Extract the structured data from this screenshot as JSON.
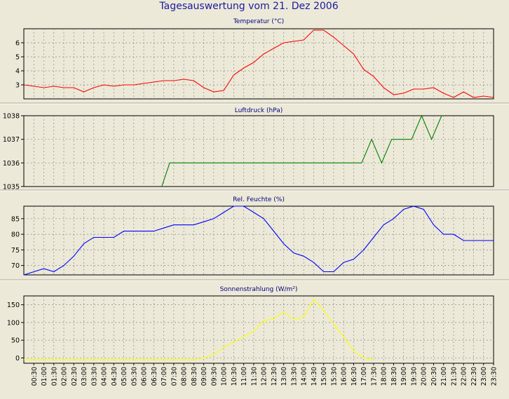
{
  "page_title": "Tagesauswertung vom 21. Dez 2006",
  "colors": {
    "background": "#ece9d8",
    "plot_background": "#ece9d8",
    "title_text": "#1a1aa0",
    "temperature": "#ff0000",
    "pressure": "#008000",
    "humidity": "#0000ff",
    "radiation": "#ffff00"
  },
  "chart_data": [
    {
      "type": "line",
      "title": "Temperatur (°C)",
      "x": [
        0,
        0.5,
        1,
        1.5,
        2,
        2.5,
        3,
        3.5,
        4,
        4.5,
        5,
        5.5,
        6,
        6.5,
        7,
        7.5,
        8,
        8.5,
        9,
        9.5,
        10,
        10.5,
        11,
        11.5,
        12,
        12.5,
        13,
        13.5,
        14,
        14.5,
        15,
        15.5,
        16,
        16.5,
        17,
        17.5,
        18,
        18.5,
        19,
        19.5,
        20,
        20.5,
        21,
        21.5,
        22,
        22.5,
        23,
        23.5
      ],
      "values": [
        3.0,
        2.9,
        2.8,
        2.9,
        2.8,
        2.8,
        2.5,
        2.8,
        3.0,
        2.9,
        3.0,
        3.0,
        3.1,
        3.2,
        3.3,
        3.3,
        3.4,
        3.3,
        2.8,
        2.5,
        2.6,
        3.7,
        4.2,
        4.6,
        5.2,
        5.6,
        6.0,
        6.1,
        6.2,
        6.9,
        6.9,
        6.4,
        5.8,
        5.2,
        4.1,
        3.6,
        2.8,
        2.3,
        2.4,
        2.7,
        2.7,
        2.8,
        2.4,
        2.1,
        2.5,
        2.1,
        2.2,
        2.1
      ],
      "ylim": [
        2,
        7
      ],
      "yticks": [
        3,
        4,
        5,
        6
      ],
      "grid": true
    },
    {
      "type": "line",
      "title": "Luftdruck (hPa)",
      "x": [
        6.9,
        7.3,
        16.9,
        17.4,
        17.9,
        18.4,
        19.4,
        19.9,
        20.4,
        20.9
      ],
      "values": [
        1035,
        1036,
        1036,
        1037,
        1036,
        1037,
        1037,
        1038,
        1037,
        1038
      ],
      "ylim": [
        1035,
        1038
      ],
      "yticks": [
        1035,
        1036,
        1037,
        1038
      ],
      "grid": true
    },
    {
      "type": "line",
      "title": "Rel. Feuchte (%)",
      "x": [
        0,
        1,
        1.5,
        2,
        2.5,
        3,
        3.5,
        4,
        4.5,
        5,
        5.5,
        6,
        6.5,
        7,
        7.5,
        8,
        8.5,
        9,
        9.5,
        10,
        10.5,
        11,
        11.5,
        12,
        12.5,
        13,
        13.5,
        14,
        14.5,
        15,
        15.5,
        16,
        16.5,
        17,
        17.5,
        18,
        18.5,
        19,
        19.5,
        20,
        20.5,
        21,
        21.5,
        22,
        22.5,
        23,
        23.5
      ],
      "values": [
        67,
        69,
        68,
        70,
        73,
        77,
        79,
        79,
        79,
        81,
        81,
        81,
        81,
        82,
        83,
        83,
        83,
        84,
        85,
        87,
        89,
        89,
        87,
        85,
        81,
        77,
        74,
        73,
        71,
        68,
        68,
        71,
        72,
        75,
        79,
        83,
        85,
        88,
        89,
        88,
        83,
        80,
        80,
        78,
        78,
        78,
        78
      ],
      "ylim": [
        67,
        89
      ],
      "yticks": [
        70,
        75,
        80,
        85
      ],
      "grid": true
    },
    {
      "type": "line",
      "title": "Sonnenstrahlung (W/m²)",
      "x": [
        0,
        8.5,
        9,
        9.5,
        10,
        10.5,
        11,
        11.5,
        12,
        12.5,
        13,
        13.5,
        14,
        14.5,
        15,
        15.5,
        16,
        16.5,
        17,
        17.5
      ],
      "values": [
        -5,
        -5,
        0,
        10,
        30,
        45,
        60,
        75,
        105,
        110,
        130,
        110,
        115,
        165,
        135,
        95,
        60,
        20,
        0,
        -5
      ],
      "ylim": [
        -15,
        175
      ],
      "yticks": [
        0,
        50,
        100,
        150
      ],
      "grid": true,
      "xticks": [
        "00:30",
        "01:00",
        "01:30",
        "02:00",
        "02:30",
        "03:00",
        "03:30",
        "04:00",
        "04:30",
        "05:00",
        "05:30",
        "06:00",
        "06:30",
        "07:00",
        "07:30",
        "08:00",
        "08:30",
        "09:00",
        "09:30",
        "10:00",
        "10:30",
        "11:00",
        "11:30",
        "12:00",
        "12:30",
        "13:00",
        "13:30",
        "14:00",
        "14:30",
        "15:00",
        "15:30",
        "16:00",
        "16:30",
        "17:00",
        "17:30",
        "18:00",
        "18:30",
        "19:00",
        "19:30",
        "20:00",
        "20:30",
        "21:00",
        "21:30",
        "22:00",
        "22:30",
        "23:00",
        "23:30"
      ]
    }
  ]
}
